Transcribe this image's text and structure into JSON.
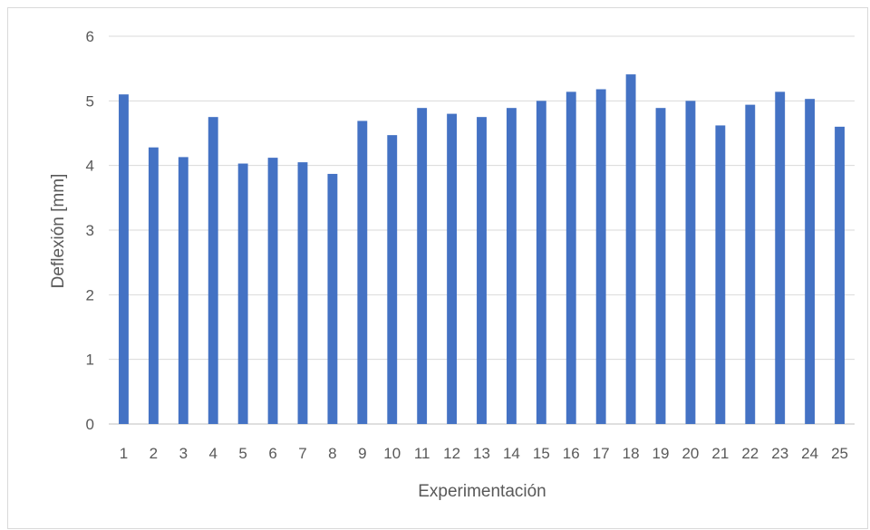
{
  "chart_data": {
    "type": "bar",
    "title": "",
    "xlabel": "Experimentación",
    "ylabel": "Deflexión [mm]",
    "ylim": [
      0,
      6
    ],
    "yticks": [
      "0",
      "1",
      "2",
      "3",
      "4",
      "5",
      "6"
    ],
    "grid": true,
    "legend": "none",
    "bar_color": "#4472c4",
    "categories": [
      "1",
      "2",
      "3",
      "4",
      "5",
      "6",
      "7",
      "8",
      "9",
      "10",
      "11",
      "12",
      "13",
      "14",
      "15",
      "16",
      "17",
      "18",
      "19",
      "20",
      "21",
      "22",
      "23",
      "24",
      "25"
    ],
    "series": [
      {
        "values": [
          5.1,
          4.28,
          4.13,
          4.75,
          4.03,
          4.12,
          4.05,
          3.87,
          4.69,
          4.47,
          4.89,
          4.8,
          4.75,
          4.89,
          5.0,
          5.14,
          5.18,
          5.41,
          4.89,
          5.0,
          4.62,
          4.94,
          5.14,
          5.03,
          4.6
        ]
      }
    ]
  }
}
